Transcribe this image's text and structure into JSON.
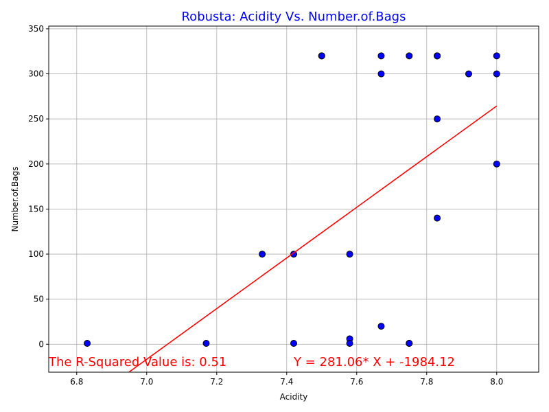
{
  "chart_data": {
    "type": "scatter",
    "title": "Robusta: Acidity Vs. Number.of.Bags",
    "xlabel": "Acidity",
    "ylabel": "Number.of.Bags",
    "xlim": [
      6.72,
      8.12
    ],
    "ylim": [
      -31,
      353
    ],
    "xticks": [
      "6.8",
      "7.0",
      "7.2",
      "7.4",
      "7.6",
      "7.8",
      "8.0"
    ],
    "yticks": [
      "0",
      "50",
      "100",
      "150",
      "200",
      "250",
      "300",
      "350"
    ],
    "grid": true,
    "points": [
      {
        "x": 6.83,
        "y": 1
      },
      {
        "x": 7.17,
        "y": 1
      },
      {
        "x": 7.33,
        "y": 100
      },
      {
        "x": 7.42,
        "y": 100
      },
      {
        "x": 7.42,
        "y": 1
      },
      {
        "x": 7.5,
        "y": 320
      },
      {
        "x": 7.5,
        "y": 320
      },
      {
        "x": 7.58,
        "y": 100
      },
      {
        "x": 7.58,
        "y": 6
      },
      {
        "x": 7.58,
        "y": 1
      },
      {
        "x": 7.67,
        "y": 320
      },
      {
        "x": 7.67,
        "y": 300
      },
      {
        "x": 7.67,
        "y": 20
      },
      {
        "x": 7.75,
        "y": 320
      },
      {
        "x": 7.75,
        "y": 1
      },
      {
        "x": 7.75,
        "y": 1
      },
      {
        "x": 7.83,
        "y": 320
      },
      {
        "x": 7.83,
        "y": 320
      },
      {
        "x": 7.83,
        "y": 250
      },
      {
        "x": 7.83,
        "y": 140
      },
      {
        "x": 7.92,
        "y": 300
      },
      {
        "x": 8.0,
        "y": 320
      },
      {
        "x": 8.0,
        "y": 300
      },
      {
        "x": 8.0,
        "y": 200
      }
    ],
    "regression": {
      "slope": 281.06,
      "intercept": -1984.12,
      "x_range": [
        6.83,
        8.0
      ]
    },
    "annotations": {
      "r_squared": "The R-Squared Value is: 0.51",
      "equation": "Y = 281.06* X + -1984.12"
    },
    "colors": {
      "title": "#0000ff",
      "points_fill": "#0000ff",
      "points_edge": "#000000",
      "line": "#ff0000",
      "annotation": "#ff0000",
      "grid": "#b0b0b0"
    }
  }
}
